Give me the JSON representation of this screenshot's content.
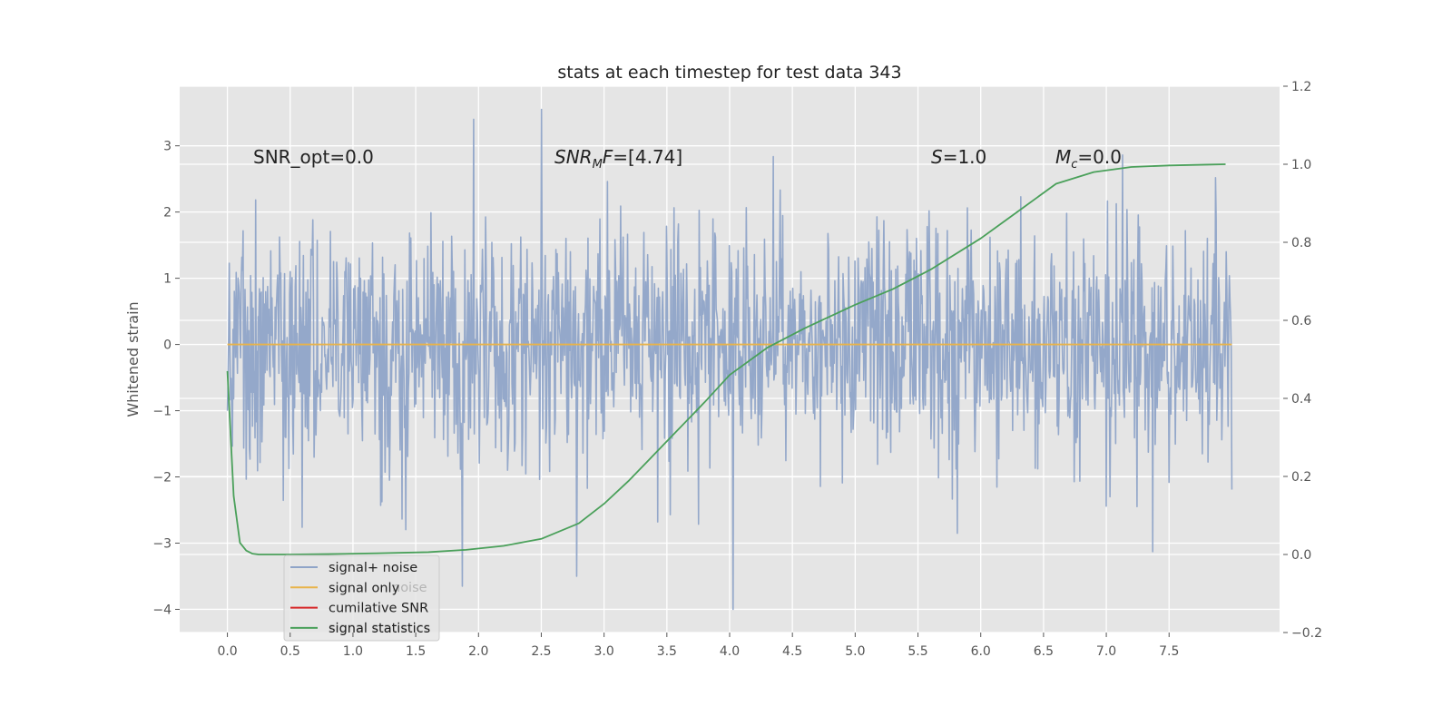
{
  "chart_data": {
    "type": "line",
    "title": "stats at each timestep for test data 343",
    "ylabel": "Whitened strain",
    "y2label": "",
    "xlim": [
      -0.38,
      8.38
    ],
    "ylim": [
      -4.35,
      3.9
    ],
    "y2lim": [
      -0.2,
      1.2
    ],
    "grid": true,
    "xticks": [
      0.0,
      0.5,
      1.0,
      1.5,
      2.0,
      2.5,
      3.0,
      3.5,
      4.0,
      4.5,
      5.0,
      5.5,
      6.0,
      6.5,
      7.0,
      7.5
    ],
    "xtick_labels": [
      "0.0",
      "0.5",
      "1.0",
      "1.5",
      "2.0",
      "2.5",
      "3.0",
      "3.5",
      "4.0",
      "4.5",
      "5.0",
      "5.5",
      "6.0",
      "6.5",
      "7.0",
      "7.5"
    ],
    "yticks": [
      -4,
      -3,
      -2,
      -1,
      0,
      1,
      2,
      3
    ],
    "ytick_labels": [
      "−4",
      "−3",
      "−2",
      "−1",
      "0",
      "1",
      "2",
      "3"
    ],
    "y2ticks": [
      -0.2,
      0.0,
      0.2,
      0.4,
      0.6,
      0.8,
      1.0,
      1.2
    ],
    "y2tick_labels": [
      "−0.2",
      "0.0",
      "0.2",
      "0.4",
      "0.6",
      "0.8",
      "1.0",
      "1.2"
    ],
    "series": [
      {
        "name": "signal+ noise",
        "axis": "left",
        "color": "#8fa4c8",
        "x_range": [
          0.0,
          8.0
        ],
        "n_points": 1600,
        "amplitude_std": 1.0,
        "y_range_approx": [
          -4.0,
          3.6
        ],
        "notable_peaks": [
          {
            "x": 2.5,
            "y": 3.55
          },
          {
            "x": 1.96,
            "y": 3.4
          },
          {
            "x": 2.78,
            "y": -3.5
          },
          {
            "x": 4.03,
            "y": -4.0
          },
          {
            "x": 1.87,
            "y": -3.65
          }
        ]
      },
      {
        "name": "signal only",
        "axis": "left",
        "color": "#e8b34a",
        "x": [
          0.0,
          8.0
        ],
        "y": [
          0.0,
          0.0
        ]
      },
      {
        "name": "cumilative SNR",
        "axis": "left",
        "color": "#d62728",
        "x": [],
        "y": []
      },
      {
        "name": "signal statistics",
        "axis": "right",
        "color": "#4aa05a",
        "x": [
          0.0,
          0.05,
          0.1,
          0.15,
          0.2,
          0.25,
          0.3,
          0.5,
          0.8,
          1.2,
          1.6,
          1.9,
          2.2,
          2.5,
          2.8,
          3.0,
          3.2,
          3.5,
          3.8,
          4.0,
          4.3,
          4.6,
          5.0,
          5.3,
          5.6,
          6.0,
          6.3,
          6.6,
          6.9,
          7.2,
          7.5,
          7.8,
          7.95
        ],
        "y": [
          0.47,
          0.15,
          0.03,
          0.01,
          0.002,
          0.0,
          0.0,
          0.0,
          0.001,
          0.003,
          0.006,
          0.012,
          0.022,
          0.04,
          0.08,
          0.13,
          0.19,
          0.29,
          0.39,
          0.46,
          0.53,
          0.58,
          0.64,
          0.68,
          0.73,
          0.81,
          0.88,
          0.95,
          0.98,
          0.993,
          0.997,
          0.999,
          1.0
        ]
      }
    ],
    "annotations": [
      {
        "text": "SNR_opt=0.0",
        "x": 0.2,
        "y": 2.8
      },
      {
        "text": "SNR_MF=[4.74]",
        "x": 2.6,
        "y": 2.8
      },
      {
        "text": "S=1.0",
        "x": 5.6,
        "y": 2.8
      },
      {
        "text": "M_c=0.0",
        "x": 6.6,
        "y": 2.8
      }
    ],
    "legend": {
      "position": "lower-left",
      "entries": [
        "signal+ noise",
        "signal only",
        "cumilative SNR",
        "signal statistics"
      ]
    },
    "legend_ghost_text": [
      "noise",
      "signal statistics"
    ]
  },
  "annotations_text": {
    "snr_opt": "SNR_opt=0.0",
    "snr_mf_base": "SNR",
    "snr_mf_sub": "M",
    "snr_mf_tail": "F",
    "snr_mf_value": "=[4.74]",
    "s_label": "S",
    "s_value": "=1.0",
    "mc_base": "M",
    "mc_sub": "c",
    "mc_value": "=0.0"
  }
}
